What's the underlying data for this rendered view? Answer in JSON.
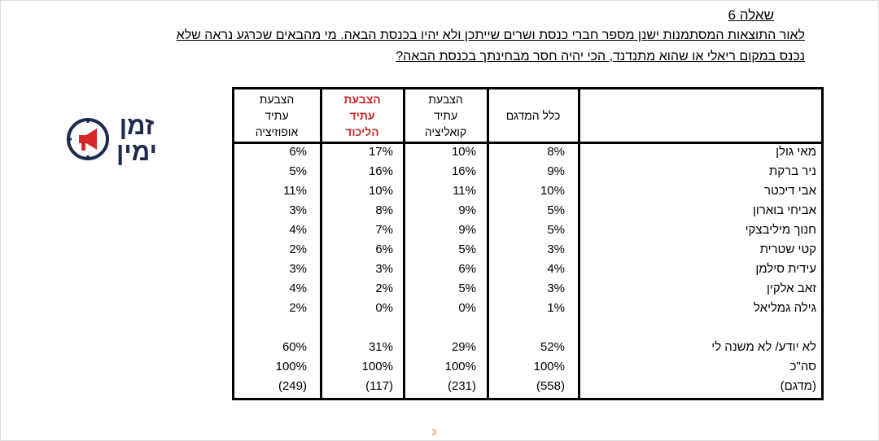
{
  "header": {
    "title": "שאלה 6",
    "question": [
      "לאור התוצאות המסתמנות ישנן מספר חברי כנסת ושרים שייתכן ולא יהיו בכנסת הבאה. מי מהבאים שכרגע נראה שלא",
      "נכנס במקום ריאלי או שהוא מתנדנד, הכי יהיה חסר מבחינתך בכנסת הבאה?"
    ]
  },
  "logo": {
    "lines": [
      "זמן",
      "ימין"
    ]
  },
  "table": {
    "columns": [
      [
        "כלל המדגם"
      ],
      [
        "הצבעת",
        "עתיד",
        "קואליציה"
      ],
      [
        "הצבעת",
        "עתיד",
        "הליכוד"
      ],
      [
        "הצבעת",
        "עתיד",
        "אופוזיציה"
      ]
    ],
    "highlight_column": 2,
    "rows": [
      [
        "מאי גולן",
        "8%",
        "10%",
        "17%",
        "6%"
      ],
      [
        "ניר ברקת",
        "9%",
        "16%",
        "16%",
        "5%"
      ],
      [
        "אבי דיכטר",
        "10%",
        "11%",
        "10%",
        "11%"
      ],
      [
        "אביחי בוארון",
        "5%",
        "9%",
        "8%",
        "3%"
      ],
      [
        "חנוך מיליבצקי",
        "5%",
        "9%",
        "7%",
        "4%"
      ],
      [
        "קטי שטרית",
        "3%",
        "5%",
        "6%",
        "2%"
      ],
      [
        "עידית סילמן",
        "4%",
        "6%",
        "3%",
        "3%"
      ],
      [
        "זאב אלקין",
        "3%",
        "5%",
        "2%",
        "4%"
      ],
      [
        "גילה גמליאל",
        "1%",
        "0%",
        "0%",
        "2%"
      ]
    ],
    "summary_rows": [
      [
        "לא יודע/ לא משנה לי",
        "52%",
        "29%",
        "31%",
        "60%"
      ],
      [
        "סה\"כ",
        "100%",
        "100%",
        "100%",
        "100%"
      ],
      [
        "(מדגם)",
        "(558)",
        "(231)",
        "(117)",
        "(249)"
      ]
    ]
  },
  "footer": {
    "page": "3"
  }
}
